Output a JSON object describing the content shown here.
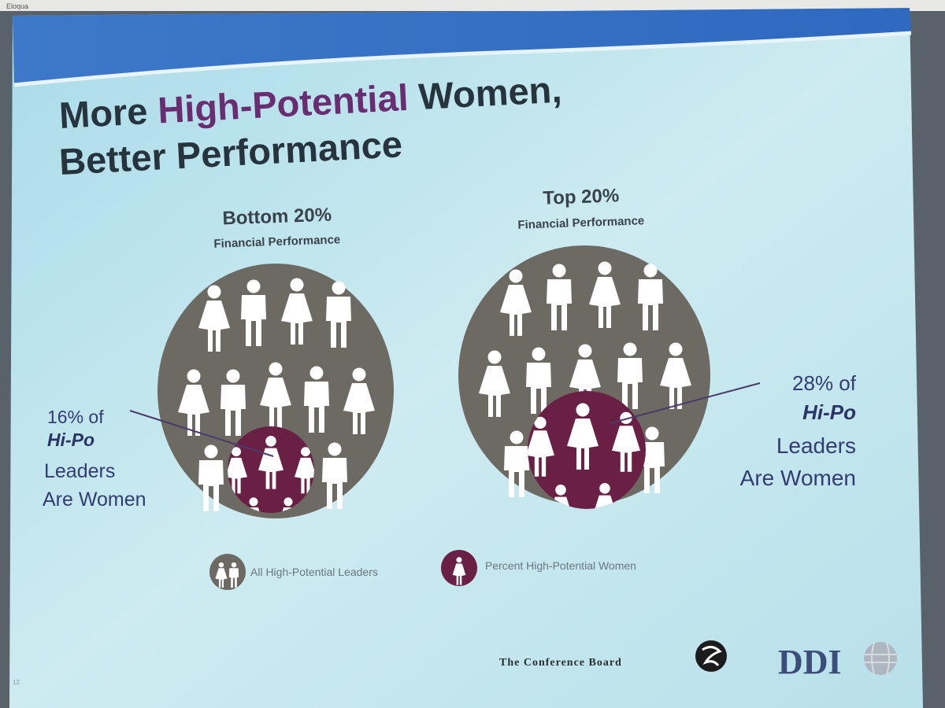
{
  "title": {
    "line1_prefix": "More ",
    "line1_highlight": "High-Potential",
    "line1_suffix": " Women,",
    "line2": "Better Performance"
  },
  "groups": [
    {
      "heading": "Bottom 20%",
      "subheading": "Financial Performance",
      "callout": {
        "percent_text": "16% of",
        "bold_text": "Hi-Po",
        "line3": "Leaders",
        "line4": "Are Women"
      },
      "percent_women": 16
    },
    {
      "heading": "Top 20%",
      "subheading": "Financial Performance",
      "callout": {
        "percent_text": "28% of",
        "bold_text": "Hi-Po",
        "line3": "Leaders",
        "line4": "Are Women"
      },
      "percent_women": 28
    }
  ],
  "legend": {
    "all_label": "All High-Potential Leaders",
    "women_label": "Percent High-Potential Women"
  },
  "footer": {
    "conference_board": "The Conference Board",
    "ddi": "DDI",
    "page_number": "12"
  },
  "colors": {
    "background": "#bfe6ef",
    "circle_gray": "#6d6a64",
    "circle_purple": "#6a1f44",
    "figure": "#ffffff",
    "title_highlight": "#6b2d72"
  }
}
